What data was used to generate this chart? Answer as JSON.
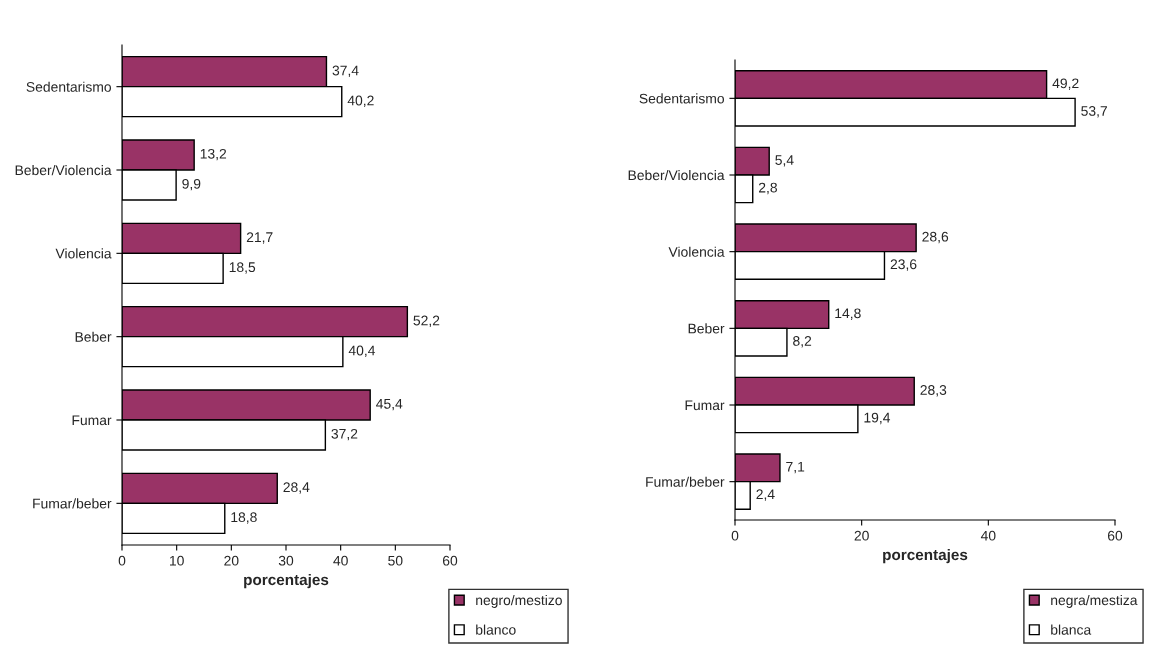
{
  "chart_data": [
    {
      "type": "bar",
      "orientation": "horizontal",
      "categories": [
        "Sedentarismo",
        "Beber/Violencia",
        "Violencia",
        "Beber",
        "Fumar",
        "Fumar/beber"
      ],
      "xlabel": "porcentajes",
      "xlim": [
        0,
        60
      ],
      "xticks": [
        0,
        10,
        20,
        30,
        40,
        50,
        60
      ],
      "legend": "bottom right",
      "grid": false,
      "series": [
        {
          "name": "negro/mestizo",
          "color": "#993366",
          "values": [
            37.4,
            13.2,
            21.7,
            52.2,
            45.4,
            28.4
          ],
          "value_labels": [
            "37,4",
            "13,2",
            "21,7",
            "52,2",
            "45,4",
            "28,4"
          ]
        },
        {
          "name": "blanco",
          "color": "#ffffff",
          "values": [
            40.2,
            9.9,
            18.5,
            40.4,
            37.2,
            18.8
          ],
          "value_labels": [
            "40,2",
            "9,9",
            "18,5",
            "40,4",
            "37,2",
            "18,8"
          ]
        }
      ]
    },
    {
      "type": "bar",
      "orientation": "horizontal",
      "categories": [
        "Sedentarismo",
        "Beber/Violencia",
        "Violencia",
        "Beber",
        "Fumar",
        "Fumar/beber"
      ],
      "xlabel": "porcentajes",
      "xlim": [
        0,
        60
      ],
      "xticks": [
        0,
        20,
        40,
        60
      ],
      "legend": "bottom right",
      "grid": false,
      "series": [
        {
          "name": "negra/mestiza",
          "color": "#993366",
          "values": [
            49.2,
            5.4,
            28.6,
            14.8,
            28.3,
            7.1
          ],
          "value_labels": [
            "49,2",
            "5,4",
            "28,6",
            "14,8",
            "28,3",
            "7,1"
          ]
        },
        {
          "name": "blanca",
          "color": "#ffffff",
          "values": [
            53.7,
            2.8,
            23.6,
            8.2,
            19.4,
            2.4
          ],
          "value_labels": [
            "53,7",
            "2,8",
            "23,6",
            "8,2",
            "19,4",
            "2,4"
          ]
        }
      ]
    }
  ]
}
